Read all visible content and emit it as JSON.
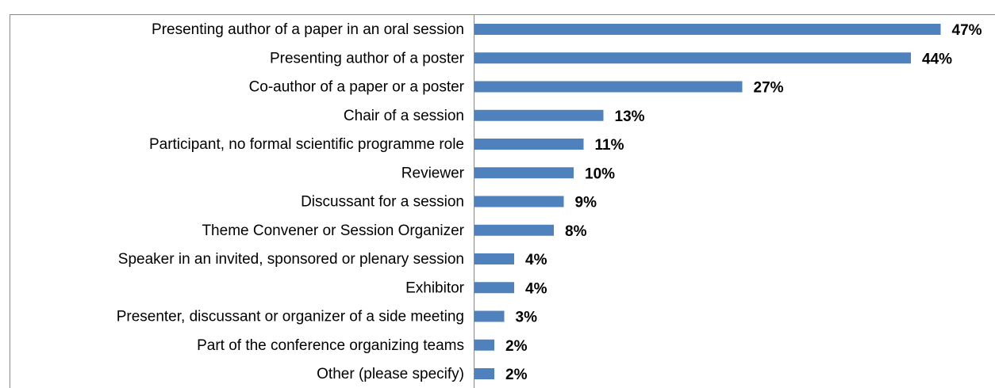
{
  "chart_data": {
    "type": "barh",
    "categories": [
      "Presenting author of a paper in an oral session",
      "Presenting author of a poster",
      "Co-author of a paper or a poster",
      "Chair of a session",
      "Participant, no formal scientific programme role",
      "Reviewer",
      "Discussant for a session",
      "Theme Convener or Session Organizer",
      "Speaker in an invited, sponsored or plenary session",
      "Exhibitor",
      "Presenter, discussant or organizer of a side meeting",
      "Part of the conference organizing teams",
      "Other (please specify)"
    ],
    "values": [
      47,
      44,
      27,
      13,
      11,
      10,
      9,
      8,
      4,
      4,
      3,
      2,
      2
    ],
    "value_labels": [
      "47%",
      "44%",
      "27%",
      "13%",
      "11%",
      "10%",
      "9%",
      "8%",
      "4%",
      "4%",
      "3%",
      "2%",
      "2%"
    ],
    "color": "#4f81bd",
    "xlim": [
      0,
      50
    ]
  }
}
